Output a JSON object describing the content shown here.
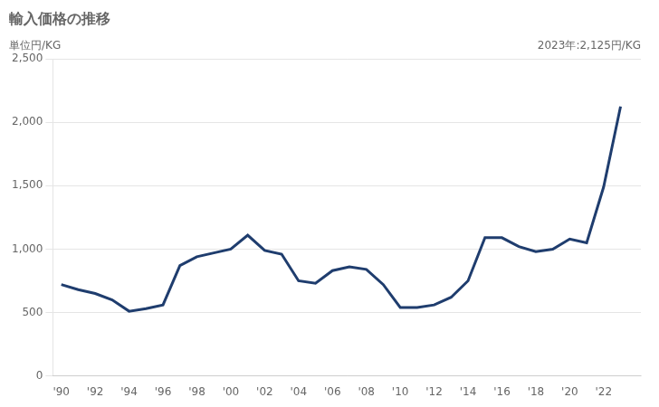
{
  "chart_data": {
    "type": "line",
    "title": "輸入価格の推移",
    "ylabel": "単位円/KG",
    "annotation": "2023年:2,125円/KG",
    "color": "#1f3d6e",
    "x": [
      1990,
      1991,
      1992,
      1993,
      1994,
      1995,
      1996,
      1997,
      1998,
      1999,
      2000,
      2001,
      2002,
      2003,
      2004,
      2005,
      2006,
      2007,
      2008,
      2009,
      2010,
      2011,
      2012,
      2013,
      2014,
      2015,
      2016,
      2017,
      2018,
      2019,
      2020,
      2021,
      2022,
      2023
    ],
    "values": [
      720,
      680,
      650,
      600,
      510,
      530,
      560,
      870,
      940,
      970,
      1000,
      1110,
      990,
      960,
      750,
      730,
      830,
      860,
      840,
      720,
      540,
      540,
      560,
      620,
      750,
      1090,
      1090,
      1020,
      980,
      1000,
      1080,
      1050,
      1490,
      2125
    ],
    "xlim": [
      1989.5,
      2024.2
    ],
    "xticks": [
      {
        "value": 1990,
        "label": "'90"
      },
      {
        "value": 1992,
        "label": "'92"
      },
      {
        "value": 1994,
        "label": "'94"
      },
      {
        "value": 1996,
        "label": "'96"
      },
      {
        "value": 1998,
        "label": "'98"
      },
      {
        "value": 2000,
        "label": "'00"
      },
      {
        "value": 2002,
        "label": "'02"
      },
      {
        "value": 2004,
        "label": "'04"
      },
      {
        "value": 2006,
        "label": "'06"
      },
      {
        "value": 2008,
        "label": "'08"
      },
      {
        "value": 2010,
        "label": "'10"
      },
      {
        "value": 2012,
        "label": "'12"
      },
      {
        "value": 2014,
        "label": "'14"
      },
      {
        "value": 2016,
        "label": "'16"
      },
      {
        "value": 2018,
        "label": "'18"
      },
      {
        "value": 2020,
        "label": "'20"
      },
      {
        "value": 2022,
        "label": "'22"
      }
    ],
    "ylim": [
      0,
      2500
    ],
    "yticks": [
      0,
      500,
      {
        "value": 1000,
        "label": "1,000"
      },
      {
        "value": 1500,
        "label": "1,500"
      },
      {
        "value": 2000,
        "label": "2,000"
      },
      {
        "value": 2500,
        "label": "2,500"
      }
    ],
    "grid": "y"
  }
}
